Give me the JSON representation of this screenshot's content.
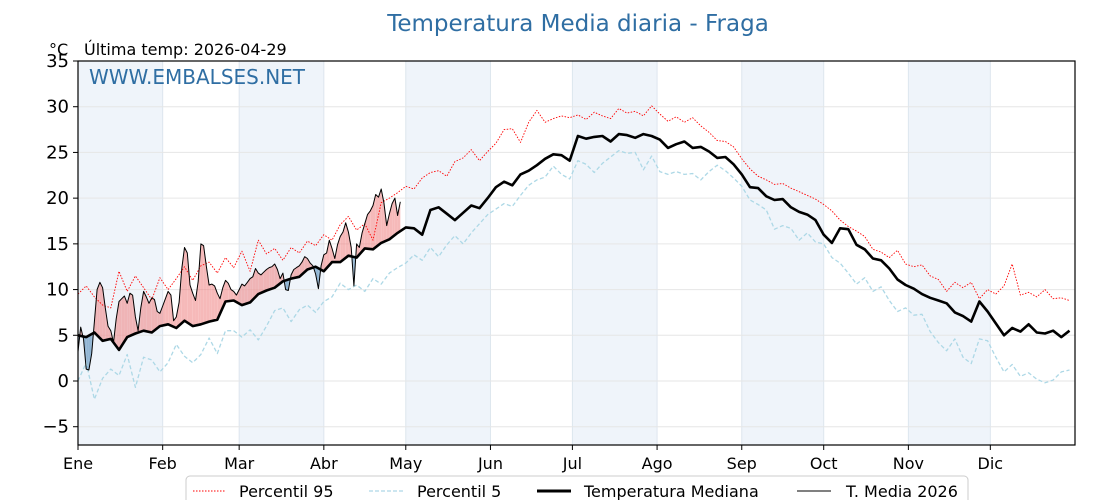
{
  "chart_data": {
    "type": "line",
    "title": "Temperatura Media diaria - Fraga",
    "ylabel": "°C",
    "subtitle": "Última temp: 2026-04-29",
    "watermark": "WWW.EMBALSES.NET",
    "ylim": [
      -7,
      35
    ],
    "yticks": [
      -5,
      0,
      5,
      10,
      15,
      20,
      25,
      30,
      35
    ],
    "ytick_labels": [
      "−5",
      "0",
      "5",
      "10",
      "15",
      "20",
      "25",
      "30",
      "35"
    ],
    "xlim_days": [
      1,
      366
    ],
    "month_starts": [
      1,
      32,
      60,
      91,
      121,
      152,
      182,
      213,
      244,
      274,
      305,
      335
    ],
    "month_labels": [
      "Ene",
      "Feb",
      "Mar",
      "Abr",
      "May",
      "Jun",
      "Jul",
      "Ago",
      "Sep",
      "Oct",
      "Nov",
      "Dic"
    ],
    "grid": true,
    "shaded_months": "alternate",
    "legend_position": "bottom-center",
    "colors": {
      "p95": "#ff0000",
      "p5": "#add8e6",
      "median": "#000000",
      "current": "#000000",
      "above_fill": "#f08080",
      "below_fill": "#4682b4",
      "band": "#e8f0f8",
      "title": "#2f6ea3"
    },
    "series": [
      {
        "name": "Percentil 95",
        "key": "p95",
        "style": "dotted",
        "x_step_days": 3,
        "x_start_day": 1,
        "values": [
          9.5,
          10.4,
          9.2,
          8.3,
          8.0,
          12.0,
          9.8,
          11.5,
          10.2,
          8.9,
          11.3,
          10.0,
          11.2,
          12.5,
          11.0,
          12.6,
          13.0,
          11.8,
          13.5,
          12.4,
          14.2,
          12.0,
          15.4,
          13.9,
          14.5,
          13.2,
          14.6,
          14.0,
          15.3,
          14.8,
          16.0,
          15.4,
          17.1,
          18.0,
          16.5,
          17.2,
          15.4,
          19.5,
          20.0,
          20.6,
          21.3,
          21.0,
          22.2,
          22.8,
          23.0,
          22.4,
          24.0,
          24.4,
          25.3,
          24.1,
          25.1,
          26.0,
          27.5,
          27.6,
          26.1,
          28.3,
          29.6,
          28.3,
          28.7,
          29.0,
          28.8,
          29.1,
          28.6,
          29.4,
          29.0,
          28.7,
          29.8,
          29.3,
          29.5,
          29.0,
          30.1,
          29.2,
          28.4,
          28.9,
          28.3,
          28.8,
          27.9,
          27.2,
          26.3,
          26.2,
          25.6,
          24.3,
          23.2,
          22.4,
          22.0,
          21.5,
          21.6,
          21.1,
          20.7,
          20.3,
          19.9,
          19.3,
          18.6,
          17.6,
          16.9,
          16.4,
          15.8,
          14.4,
          14.1,
          13.5,
          14.3,
          12.8,
          12.5,
          12.7,
          11.5,
          11.1,
          9.8,
          10.8,
          10.2,
          10.8,
          9.0,
          10.0,
          9.5,
          10.4,
          12.8,
          9.4,
          9.7,
          9.2,
          10.0,
          9.0,
          9.1,
          8.8
        ]
      },
      {
        "name": "Percentil 5",
        "key": "p5",
        "style": "dashed",
        "x_step_days": 3,
        "x_start_day": 1,
        "values": [
          0.0,
          2.0,
          -2.0,
          0.3,
          1.3,
          0.6,
          2.9,
          -0.7,
          2.6,
          2.3,
          1.0,
          2.0,
          4.0,
          2.7,
          2.0,
          2.9,
          4.7,
          3.0,
          5.5,
          5.5,
          4.8,
          5.6,
          4.5,
          6.0,
          7.7,
          8.0,
          6.5,
          7.8,
          8.3,
          7.5,
          8.7,
          9.2,
          10.7,
          10.0,
          10.5,
          9.8,
          11.2,
          10.6,
          11.8,
          12.4,
          12.9,
          13.8,
          13.2,
          14.6,
          13.6,
          14.9,
          15.9,
          15.0,
          16.2,
          17.2,
          18.2,
          18.8,
          19.4,
          19.1,
          20.3,
          21.4,
          22.0,
          22.3,
          23.5,
          22.6,
          22.1,
          24.1,
          23.7,
          22.8,
          23.8,
          24.5,
          25.2,
          24.9,
          25.0,
          23.1,
          24.6,
          22.9,
          22.6,
          22.9,
          22.6,
          22.7,
          22.0,
          22.9,
          23.6,
          23.0,
          22.2,
          21.3,
          19.8,
          19.3,
          18.7,
          16.6,
          17.0,
          16.7,
          15.4,
          16.2,
          15.2,
          15.0,
          13.5,
          12.9,
          11.8,
          10.6,
          11.3,
          9.8,
          10.3,
          8.8,
          7.6,
          8.0,
          7.2,
          7.3,
          5.4,
          4.2,
          3.3,
          4.6,
          2.6,
          1.9,
          4.6,
          4.4,
          2.6,
          1.0,
          1.8,
          0.5,
          0.9,
          0.2,
          -0.2,
          0.1,
          1.0,
          1.2
        ]
      },
      {
        "name": "Temperatura Mediana",
        "key": "median",
        "style": "solid-thick",
        "x_step_days": 3,
        "x_start_day": 1,
        "values": [
          5.0,
          4.8,
          5.3,
          4.4,
          4.6,
          3.4,
          4.8,
          5.2,
          5.5,
          5.3,
          6.0,
          6.2,
          5.8,
          6.6,
          6.0,
          6.2,
          6.5,
          6.7,
          8.7,
          8.8,
          8.3,
          8.6,
          9.5,
          9.9,
          10.2,
          10.9,
          11.2,
          11.4,
          12.2,
          12.5,
          12.0,
          13.0,
          13.0,
          13.7,
          13.5,
          14.5,
          14.4,
          15.1,
          15.5,
          16.2,
          16.8,
          16.7,
          16.0,
          18.7,
          19.0,
          18.3,
          17.6,
          18.4,
          19.2,
          18.9,
          20.0,
          21.2,
          21.8,
          21.4,
          22.6,
          23.0,
          23.6,
          24.3,
          24.8,
          24.7,
          24.1,
          26.8,
          26.5,
          26.7,
          26.8,
          26.2,
          27.0,
          26.9,
          26.6,
          27.0,
          26.8,
          26.4,
          25.5,
          25.9,
          26.2,
          25.5,
          25.6,
          25.1,
          24.4,
          24.5,
          23.7,
          22.6,
          21.2,
          21.1,
          20.2,
          19.8,
          19.9,
          19.0,
          18.5,
          18.2,
          17.6,
          16.0,
          15.1,
          16.7,
          16.6,
          14.9,
          14.4,
          13.4,
          13.2,
          12.3,
          11.1,
          10.5,
          10.1,
          9.5,
          9.1,
          8.8,
          8.5,
          7.5,
          7.1,
          6.5,
          8.7,
          7.6,
          6.3,
          5.0,
          5.8,
          5.4,
          6.2,
          5.3,
          5.2,
          5.5,
          4.8,
          5.5
        ]
      },
      {
        "name": "T. Media 2026",
        "key": "current",
        "style": "solid-thin",
        "x_step_days": 1,
        "x_start_day": 1,
        "values": [
          3.2,
          5.9,
          4.6,
          1.3,
          1.2,
          3.0,
          6.5,
          10.0,
          10.8,
          10.2,
          8.0,
          6.0,
          5.5,
          4.2,
          6.8,
          8.7,
          9.0,
          9.3,
          8.5,
          9.6,
          9.4,
          7.0,
          5.5,
          8.0,
          9.8,
          9.2,
          8.5,
          9.1,
          8.9,
          7.6,
          7.4,
          8.2,
          9.0,
          9.8,
          9.4,
          6.6,
          7.0,
          8.6,
          12.3,
          14.6,
          14.0,
          10.5,
          9.6,
          8.8,
          10.9,
          15.0,
          14.8,
          12.5,
          10.5,
          10.6,
          10.4,
          9.6,
          9.0,
          10.2,
          11.0,
          10.7,
          10.0,
          9.8,
          9.4,
          10.0,
          10.6,
          10.4,
          10.8,
          11.2,
          11.4,
          12.3,
          11.8,
          11.6,
          11.9,
          12.2,
          12.4,
          12.5,
          12.8,
          12.2,
          11.2,
          11.8,
          10.0,
          9.9,
          11.6,
          12.2,
          12.4,
          12.6,
          13.0,
          13.6,
          13.4,
          12.9,
          12.6,
          11.7,
          10.1,
          12.6,
          13.8,
          14.0,
          15.4,
          14.5,
          13.4,
          14.9,
          15.8,
          16.3,
          17.3,
          16.3,
          14.6,
          10.4,
          15.0,
          14.6,
          16.2,
          17.2,
          18.2,
          18.6,
          19.2,
          20.4,
          20.1,
          21.0,
          19.5,
          17.0,
          18.3,
          19.4,
          20.0,
          18.1,
          19.6
        ]
      }
    ],
    "legend": [
      "Percentil 95",
      "Percentil 5",
      "Temperatura Mediana",
      "T. Media 2026"
    ]
  }
}
